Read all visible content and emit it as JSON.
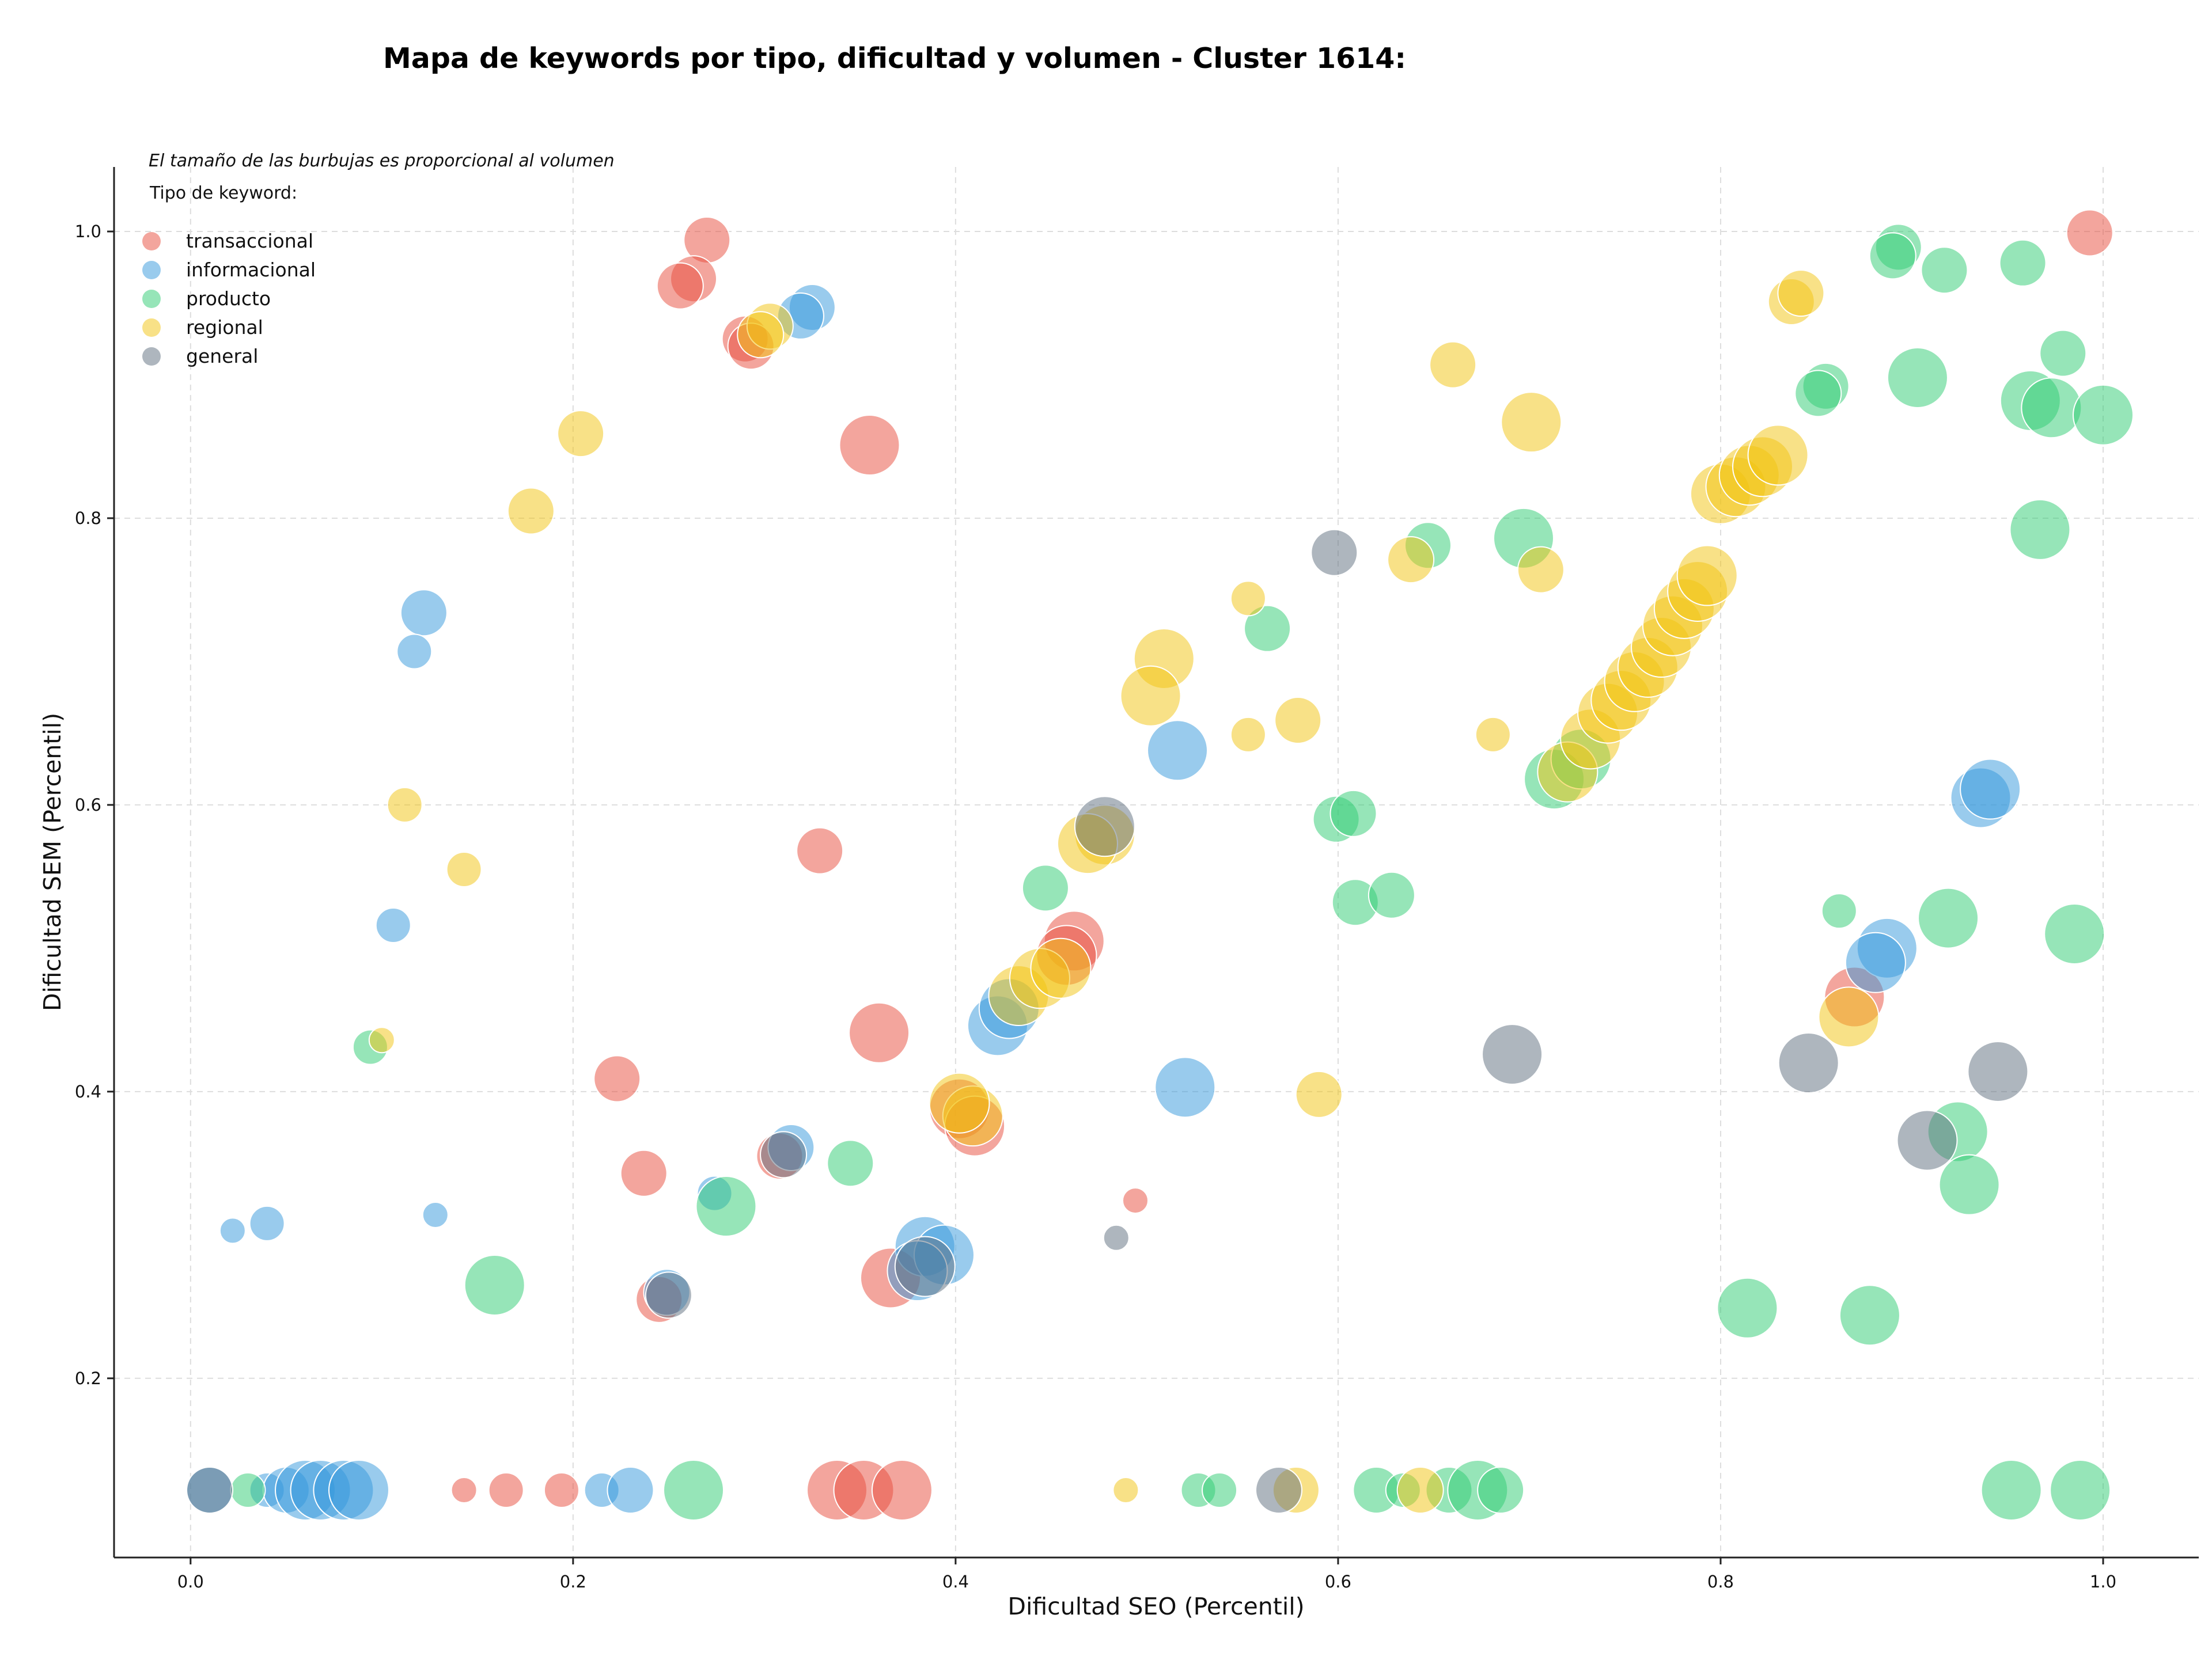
{
  "chart_data": {
    "type": "scatter",
    "title": "Mapa de keywords por tipo, dificultad y volumen - Cluster 1614:",
    "xlabel": "Dificultad SEO (Percentil)",
    "ylabel": "Dificultad SEM (Percentil)",
    "annotation": "El tamaño de las burbujas es proporcional al volumen",
    "legend_title": "Tipo de keyword:",
    "legend_position": "top-left",
    "grid": true,
    "xlim": [
      -0.04,
      1.05
    ],
    "ylim": [
      0.075,
      1.045
    ],
    "xticks": [
      "0.0",
      "0.2",
      "0.4",
      "0.6",
      "0.8",
      "1.0"
    ],
    "yticks": [
      "0.2",
      "0.4",
      "0.6",
      "0.8",
      "1.0"
    ],
    "series": [
      {
        "name": "transaccional",
        "color": "#e74c3c",
        "points": [
          [
            0.27,
            0.994,
            4
          ],
          [
            0.263,
            0.967,
            4
          ],
          [
            0.256,
            0.962,
            4
          ],
          [
            0.29,
            0.925,
            4
          ],
          [
            0.293,
            0.92,
            4
          ],
          [
            0.355,
            0.851,
            5
          ],
          [
            0.329,
            0.568,
            4
          ],
          [
            0.462,
            0.505,
            5
          ],
          [
            0.458,
            0.495,
            5
          ],
          [
            0.36,
            0.441,
            5
          ],
          [
            0.223,
            0.409,
            4
          ],
          [
            0.237,
            0.343,
            4
          ],
          [
            0.308,
            0.355,
            4
          ],
          [
            0.402,
            0.388,
            5
          ],
          [
            0.41,
            0.376,
            5
          ],
          [
            0.366,
            0.27,
            5
          ],
          [
            0.245,
            0.255,
            4
          ],
          [
            0.494,
            0.324,
            2
          ],
          [
            0.87,
            0.466,
            5
          ],
          [
            0.143,
            0.122,
            2
          ],
          [
            0.165,
            0.122,
            3
          ],
          [
            0.194,
            0.122,
            3
          ],
          [
            0.338,
            0.122,
            5
          ],
          [
            0.352,
            0.122,
            5
          ],
          [
            0.372,
            0.122,
            5
          ],
          [
            0.993,
            0.999,
            4
          ]
        ]
      },
      {
        "name": "informacional",
        "color": "#3498db",
        "points": [
          [
            0.325,
            0.947,
            4
          ],
          [
            0.319,
            0.941,
            4
          ],
          [
            0.122,
            0.734,
            4
          ],
          [
            0.117,
            0.707,
            3
          ],
          [
            0.106,
            0.516,
            3
          ],
          [
            0.022,
            0.303,
            2
          ],
          [
            0.04,
            0.308,
            3
          ],
          [
            0.128,
            0.314,
            2
          ],
          [
            0.274,
            0.329,
            3
          ],
          [
            0.314,
            0.361,
            4
          ],
          [
            0.249,
            0.26,
            4
          ],
          [
            0.384,
            0.292,
            5
          ],
          [
            0.394,
            0.286,
            5
          ],
          [
            0.38,
            0.275,
            5
          ],
          [
            0.52,
            0.403,
            5
          ],
          [
            0.516,
            0.638,
            5
          ],
          [
            0.422,
            0.446,
            5
          ],
          [
            0.428,
            0.458,
            5
          ],
          [
            0.887,
            0.5,
            5
          ],
          [
            0.881,
            0.49,
            5
          ],
          [
            0.936,
            0.605,
            5
          ],
          [
            0.941,
            0.611,
            5
          ],
          [
            0.01,
            0.122,
            4
          ],
          [
            0.04,
            0.122,
            3
          ],
          [
            0.05,
            0.122,
            4
          ],
          [
            0.06,
            0.122,
            5
          ],
          [
            0.068,
            0.122,
            5
          ],
          [
            0.08,
            0.122,
            5
          ],
          [
            0.088,
            0.122,
            5
          ],
          [
            0.215,
            0.122,
            3
          ],
          [
            0.23,
            0.122,
            4
          ]
        ]
      },
      {
        "name": "producto",
        "color": "#2ecc71",
        "points": [
          [
            0.893,
            0.989,
            4
          ],
          [
            0.89,
            0.983,
            4
          ],
          [
            0.917,
            0.973,
            4
          ],
          [
            0.958,
            0.978,
            4
          ],
          [
            0.979,
            0.915,
            4
          ],
          [
            0.855,
            0.892,
            4
          ],
          [
            0.851,
            0.887,
            4
          ],
          [
            0.903,
            0.898,
            5
          ],
          [
            0.962,
            0.882,
            5
          ],
          [
            0.973,
            0.877,
            5
          ],
          [
            1.0,
            0.872,
            5
          ],
          [
            0.967,
            0.792,
            5
          ],
          [
            0.647,
            0.781,
            4
          ],
          [
            0.697,
            0.786,
            5
          ],
          [
            0.563,
            0.723,
            4
          ],
          [
            0.599,
            0.59,
            4
          ],
          [
            0.608,
            0.594,
            4
          ],
          [
            0.609,
            0.532,
            4
          ],
          [
            0.628,
            0.537,
            4
          ],
          [
            0.447,
            0.542,
            4
          ],
          [
            0.713,
            0.618,
            5
          ],
          [
            0.727,
            0.632,
            5
          ],
          [
            0.862,
            0.526,
            3
          ],
          [
            0.919,
            0.521,
            5
          ],
          [
            0.985,
            0.51,
            5
          ],
          [
            0.924,
            0.372,
            5
          ],
          [
            0.93,
            0.335,
            5
          ],
          [
            0.814,
            0.249,
            5
          ],
          [
            0.878,
            0.244,
            5
          ],
          [
            0.345,
            0.35,
            4
          ],
          [
            0.28,
            0.32,
            5
          ],
          [
            0.159,
            0.265,
            5
          ],
          [
            0.094,
            0.431,
            3
          ],
          [
            0.03,
            0.122,
            3
          ],
          [
            0.263,
            0.122,
            5
          ],
          [
            0.527,
            0.122,
            3
          ],
          [
            0.538,
            0.122,
            3
          ],
          [
            0.62,
            0.122,
            4
          ],
          [
            0.634,
            0.122,
            3
          ],
          [
            0.658,
            0.122,
            4
          ],
          [
            0.673,
            0.122,
            5
          ],
          [
            0.685,
            0.122,
            4
          ],
          [
            0.952,
            0.122,
            5
          ],
          [
            0.988,
            0.122,
            5
          ]
        ]
      },
      {
        "name": "regional",
        "color": "#f1c40f",
        "points": [
          [
            0.837,
            0.951,
            4
          ],
          [
            0.842,
            0.957,
            4
          ],
          [
            0.204,
            0.859,
            4
          ],
          [
            0.178,
            0.805,
            4
          ],
          [
            0.303,
            0.934,
            4
          ],
          [
            0.298,
            0.928,
            4
          ],
          [
            0.66,
            0.907,
            4
          ],
          [
            0.701,
            0.867,
            5
          ],
          [
            0.706,
            0.764,
            4
          ],
          [
            0.638,
            0.771,
            4
          ],
          [
            0.553,
            0.744,
            3
          ],
          [
            0.509,
            0.702,
            5
          ],
          [
            0.502,
            0.676,
            5
          ],
          [
            0.553,
            0.649,
            3
          ],
          [
            0.579,
            0.659,
            4
          ],
          [
            0.681,
            0.649,
            3
          ],
          [
            0.478,
            0.579,
            5
          ],
          [
            0.469,
            0.573,
            5
          ],
          [
            0.112,
            0.6,
            3
          ],
          [
            0.143,
            0.555,
            3
          ],
          [
            0.1,
            0.436,
            2
          ],
          [
            0.59,
            0.398,
            4
          ],
          [
            0.867,
            0.452,
            5
          ],
          [
            0.409,
            0.383,
            5
          ],
          [
            0.402,
            0.392,
            5
          ],
          [
            0.433,
            0.467,
            5
          ],
          [
            0.444,
            0.479,
            5
          ],
          [
            0.455,
            0.486,
            5
          ],
          [
            0.72,
            0.623,
            5
          ],
          [
            0.732,
            0.646,
            5
          ],
          [
            0.741,
            0.664,
            5
          ],
          [
            0.748,
            0.673,
            5
          ],
          [
            0.755,
            0.686,
            5
          ],
          [
            0.762,
            0.696,
            5
          ],
          [
            0.769,
            0.71,
            5
          ],
          [
            0.775,
            0.725,
            5
          ],
          [
            0.781,
            0.737,
            5
          ],
          [
            0.788,
            0.749,
            5
          ],
          [
            0.793,
            0.76,
            5
          ],
          [
            0.8,
            0.817,
            5
          ],
          [
            0.808,
            0.822,
            5
          ],
          [
            0.815,
            0.83,
            5
          ],
          [
            0.822,
            0.836,
            5
          ],
          [
            0.83,
            0.844,
            5
          ],
          [
            0.489,
            0.122,
            2
          ],
          [
            0.578,
            0.122,
            4
          ],
          [
            0.643,
            0.122,
            4
          ]
        ]
      },
      {
        "name": "general",
        "color": "#5d6d7e",
        "points": [
          [
            0.598,
            0.776,
            4
          ],
          [
            0.478,
            0.585,
            5
          ],
          [
            0.691,
            0.426,
            5
          ],
          [
            0.846,
            0.42,
            5
          ],
          [
            0.945,
            0.414,
            5
          ],
          [
            0.908,
            0.366,
            5
          ],
          [
            0.31,
            0.356,
            4
          ],
          [
            0.25,
            0.258,
            4
          ],
          [
            0.384,
            0.278,
            5
          ],
          [
            0.484,
            0.298,
            2
          ],
          [
            0.01,
            0.122,
            4
          ],
          [
            0.569,
            0.122,
            4
          ]
        ]
      }
    ]
  }
}
